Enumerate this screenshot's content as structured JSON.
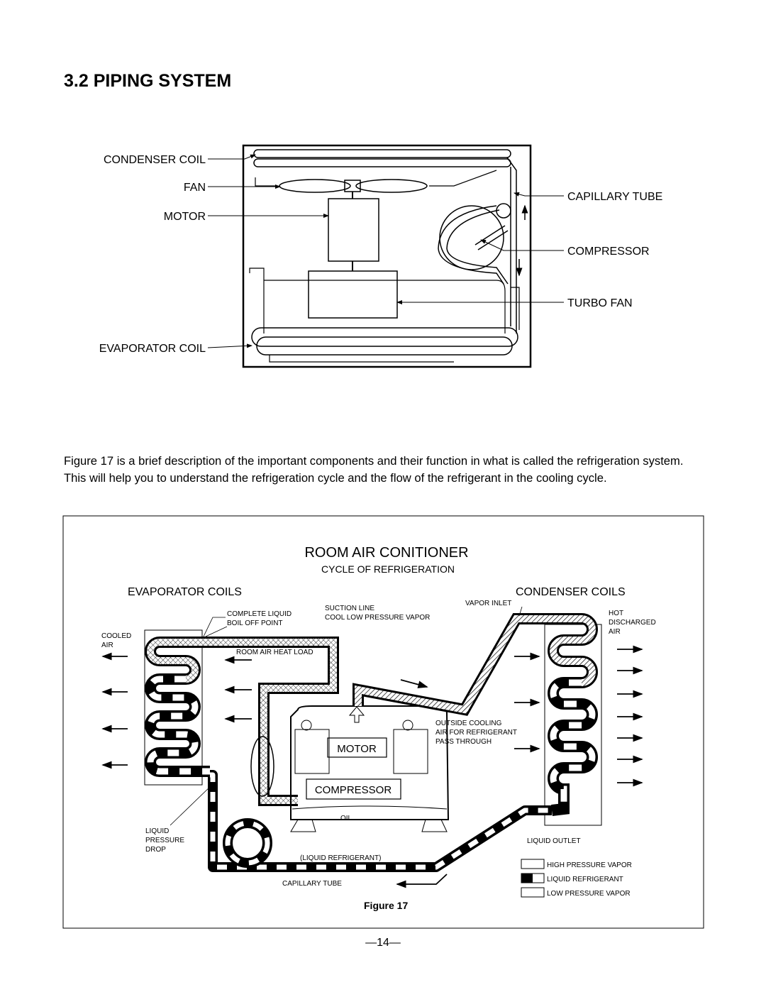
{
  "heading": "3.2 PIPING SYSTEM",
  "diagram1": {
    "left_labels": [
      "CONDENSER  COIL",
      "FAN",
      "MOTOR",
      "EVAPORATOR COIL"
    ],
    "right_labels": [
      "CAPILLARY  TUBE",
      "COMPRESSOR",
      "TURBO FAN"
    ]
  },
  "paragraph": "Figure 17 is a brief description of the important components and their function in what is called the refrigeration system. This will help you to understand the refrigeration cycle and the flow of the refrigerant in the cooling cycle.",
  "diagram2": {
    "title": "ROOM AIR CONITIONER",
    "subtitle": "CYCLE OF REFRIGERATION",
    "evaporator_coils": "EVAPORATOR COILS",
    "condenser_coils": "CONDENSER COILS",
    "complete_liquid": [
      "COMPLETE LIQUID",
      "BOIL OFF POINT"
    ],
    "suction_line": [
      "SUCTION LINE",
      "COOL LOW PRESSURE VAPOR"
    ],
    "vapor_inlet": "VAPOR INLET",
    "hot_air": [
      "HOT",
      "DISCHARGED",
      "AIR"
    ],
    "cooled_air": [
      "COOLED",
      "AIR"
    ],
    "room_air_heat_load": "ROOM AIR HEAT LOAD",
    "outside_cooling": [
      "OUTSIDE COOLING",
      "AIR FOR REFRIGERANT",
      "PASS THROUGH"
    ],
    "motor": "MOTOR",
    "compressor": "COMPRESSOR",
    "oil": "OIL",
    "liquid_pressure_drop": [
      "LIQUID",
      "PRESSURE",
      "DROP"
    ],
    "liquid_outlet": "LIQUID OUTLET",
    "liquid_refrigerant": "(LIQUID REFRIGERANT)",
    "capillary_tube": "CAPILLARY TUBE",
    "legend": [
      "HIGH PRESSURE VAPOR",
      "LIQUID REFRIGERANT",
      "LOW PRESSURE VAPOR"
    ]
  },
  "caption": "Figure 17",
  "page_number": "—14—"
}
